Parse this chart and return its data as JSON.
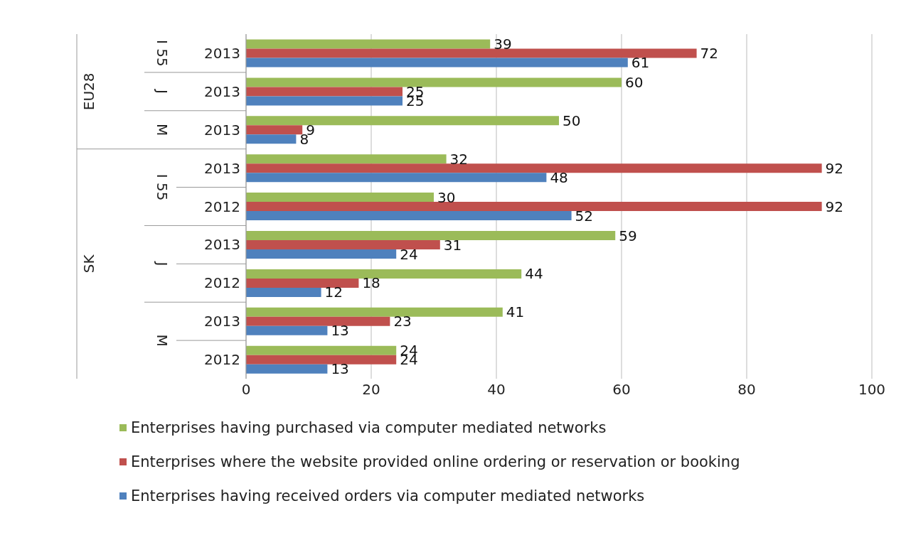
{
  "chart_data": {
    "type": "bar",
    "orientation": "horizontal",
    "categories": [
      "2013",
      "2013",
      "2013",
      "2013",
      "2012",
      "2013",
      "2012",
      "2013",
      "2012"
    ],
    "annotations": [
      "I 55",
      "J",
      "M",
      "I 55",
      "J",
      "M",
      "EU28",
      "SK"
    ],
    "series": [
      {
        "name": "Enterprises having purchased via computer mediated networks",
        "color": "#9bbb59",
        "values": [
          39,
          60,
          50,
          32,
          30,
          59,
          44,
          41,
          24
        ]
      },
      {
        "name": "Enterprises where the website provided online ordering or reservation or booking",
        "color": "#c0504d",
        "values": [
          72,
          25,
          9,
          92,
          92,
          31,
          18,
          23,
          24
        ]
      },
      {
        "name": "Enterprises having received orders via computer mediated networks",
        "color": "#4f81bd",
        "values": [
          61,
          25,
          8,
          48,
          52,
          24,
          12,
          13,
          13
        ]
      }
    ],
    "xlim": [
      0,
      100
    ],
    "xticks": [
      0,
      20,
      40,
      60,
      80,
      100
    ],
    "grid": "x",
    "legend": "bottom",
    "data_labels": true
  }
}
